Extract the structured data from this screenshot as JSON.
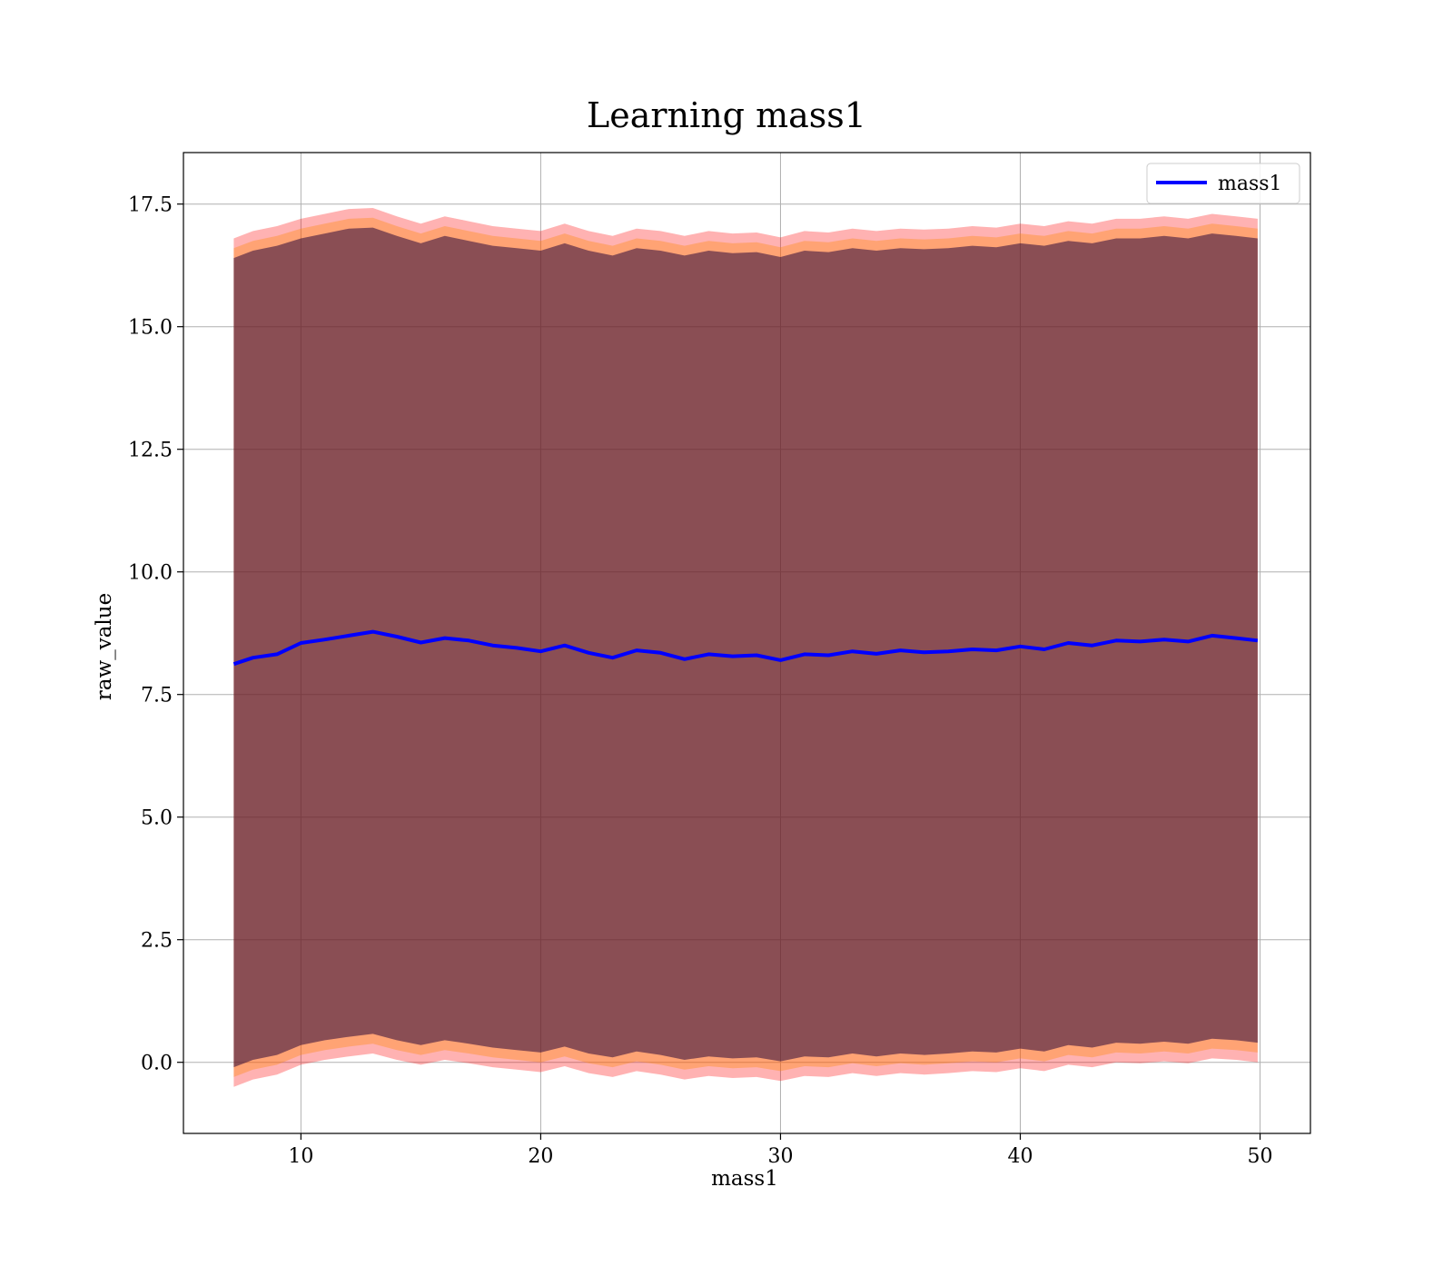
{
  "chart_data": {
    "type": "line",
    "title": "Learning mass1",
    "xlabel": "mass1",
    "ylabel": "raw_value",
    "xlim": [
      5.1,
      52.1
    ],
    "ylim": [
      -1.45,
      18.55
    ],
    "xticks": [
      10,
      20,
      30,
      40,
      50
    ],
    "xtick_labels": [
      "10",
      "20",
      "30",
      "40",
      "50"
    ],
    "yticks": [
      0.0,
      2.5,
      5.0,
      7.5,
      10.0,
      12.5,
      15.0,
      17.5
    ],
    "ytick_labels": [
      "0.0",
      "2.5",
      "5.0",
      "7.5",
      "10.0",
      "12.5",
      "15.0",
      "17.5"
    ],
    "grid": true,
    "legend_position": "top-right",
    "series": [
      {
        "name": "mass1",
        "color": "#0000ff",
        "x": [
          7.2,
          8,
          9,
          10,
          11,
          12,
          13,
          14,
          15,
          16,
          17,
          18,
          19,
          20,
          21,
          22,
          23,
          24,
          25,
          26,
          27,
          28,
          29,
          30,
          31,
          32,
          33,
          34,
          35,
          36,
          37,
          38,
          39,
          40,
          41,
          42,
          43,
          44,
          45,
          46,
          47,
          48,
          49,
          49.9
        ],
        "y": [
          8.12,
          8.25,
          8.32,
          8.55,
          8.62,
          8.7,
          8.78,
          8.68,
          8.56,
          8.65,
          8.6,
          8.5,
          8.45,
          8.38,
          8.5,
          8.35,
          8.25,
          8.4,
          8.35,
          8.22,
          8.32,
          8.28,
          8.3,
          8.2,
          8.32,
          8.3,
          8.38,
          8.33,
          8.4,
          8.36,
          8.38,
          8.42,
          8.4,
          8.48,
          8.42,
          8.55,
          8.5,
          8.6,
          8.58,
          8.62,
          8.58,
          8.7,
          8.65,
          8.6
        ]
      }
    ],
    "bands": [
      {
        "color": "#ff0000",
        "opacity": 0.3,
        "upper": [
          16.8,
          16.95,
          17.05,
          17.2,
          17.3,
          17.4,
          17.42,
          17.25,
          17.1,
          17.25,
          17.15,
          17.05,
          17.0,
          16.95,
          17.1,
          16.95,
          16.85,
          17.0,
          16.95,
          16.85,
          16.95,
          16.9,
          16.92,
          16.82,
          16.95,
          16.92,
          17.0,
          16.95,
          17.0,
          16.98,
          17.0,
          17.05,
          17.02,
          17.1,
          17.05,
          17.15,
          17.1,
          17.2,
          17.2,
          17.25,
          17.2,
          17.3,
          17.25,
          17.2
        ],
        "lower": [
          -0.5,
          -0.35,
          -0.25,
          -0.05,
          0.05,
          0.12,
          0.18,
          0.05,
          -0.05,
          0.05,
          -0.02,
          -0.1,
          -0.15,
          -0.2,
          -0.08,
          -0.22,
          -0.3,
          -0.18,
          -0.25,
          -0.35,
          -0.28,
          -0.32,
          -0.3,
          -0.38,
          -0.28,
          -0.3,
          -0.22,
          -0.28,
          -0.22,
          -0.25,
          -0.22,
          -0.18,
          -0.2,
          -0.12,
          -0.18,
          -0.05,
          -0.1,
          0.0,
          -0.02,
          0.02,
          -0.02,
          0.08,
          0.05,
          0.0
        ]
      },
      {
        "color": "#ff8800",
        "opacity": 0.35,
        "upper": [
          16.6,
          16.75,
          16.85,
          17.0,
          17.1,
          17.2,
          17.22,
          17.05,
          16.9,
          17.05,
          16.95,
          16.85,
          16.8,
          16.75,
          16.9,
          16.75,
          16.65,
          16.8,
          16.75,
          16.65,
          16.75,
          16.7,
          16.72,
          16.62,
          16.75,
          16.72,
          16.8,
          16.75,
          16.8,
          16.78,
          16.8,
          16.85,
          16.82,
          16.9,
          16.85,
          16.95,
          16.9,
          17.0,
          17.0,
          17.05,
          17.0,
          17.1,
          17.05,
          17.0
        ],
        "lower": [
          -0.3,
          -0.15,
          -0.05,
          0.15,
          0.25,
          0.32,
          0.38,
          0.25,
          0.15,
          0.25,
          0.18,
          0.1,
          0.05,
          0.0,
          0.12,
          -0.02,
          -0.1,
          0.02,
          -0.05,
          -0.15,
          -0.08,
          -0.12,
          -0.1,
          -0.18,
          -0.08,
          -0.1,
          -0.02,
          -0.08,
          -0.02,
          -0.05,
          -0.02,
          0.02,
          0.0,
          0.08,
          0.02,
          0.15,
          0.1,
          0.2,
          0.18,
          0.22,
          0.18,
          0.28,
          0.25,
          0.2
        ]
      },
      {
        "color": "#2a0a3a",
        "opacity": 0.55,
        "upper": [
          16.4,
          16.55,
          16.65,
          16.8,
          16.9,
          17.0,
          17.02,
          16.85,
          16.7,
          16.85,
          16.75,
          16.65,
          16.6,
          16.55,
          16.7,
          16.55,
          16.45,
          16.6,
          16.55,
          16.45,
          16.55,
          16.5,
          16.52,
          16.42,
          16.55,
          16.52,
          16.6,
          16.55,
          16.6,
          16.58,
          16.6,
          16.65,
          16.62,
          16.7,
          16.65,
          16.75,
          16.7,
          16.8,
          16.8,
          16.85,
          16.8,
          16.9,
          16.85,
          16.8
        ],
        "lower": [
          -0.1,
          0.05,
          0.15,
          0.35,
          0.45,
          0.52,
          0.58,
          0.45,
          0.35,
          0.45,
          0.38,
          0.3,
          0.25,
          0.2,
          0.32,
          0.18,
          0.1,
          0.22,
          0.15,
          0.05,
          0.12,
          0.08,
          0.1,
          0.02,
          0.12,
          0.1,
          0.18,
          0.12,
          0.18,
          0.15,
          0.18,
          0.22,
          0.2,
          0.28,
          0.22,
          0.35,
          0.3,
          0.4,
          0.38,
          0.42,
          0.38,
          0.48,
          0.45,
          0.4
        ]
      }
    ]
  }
}
